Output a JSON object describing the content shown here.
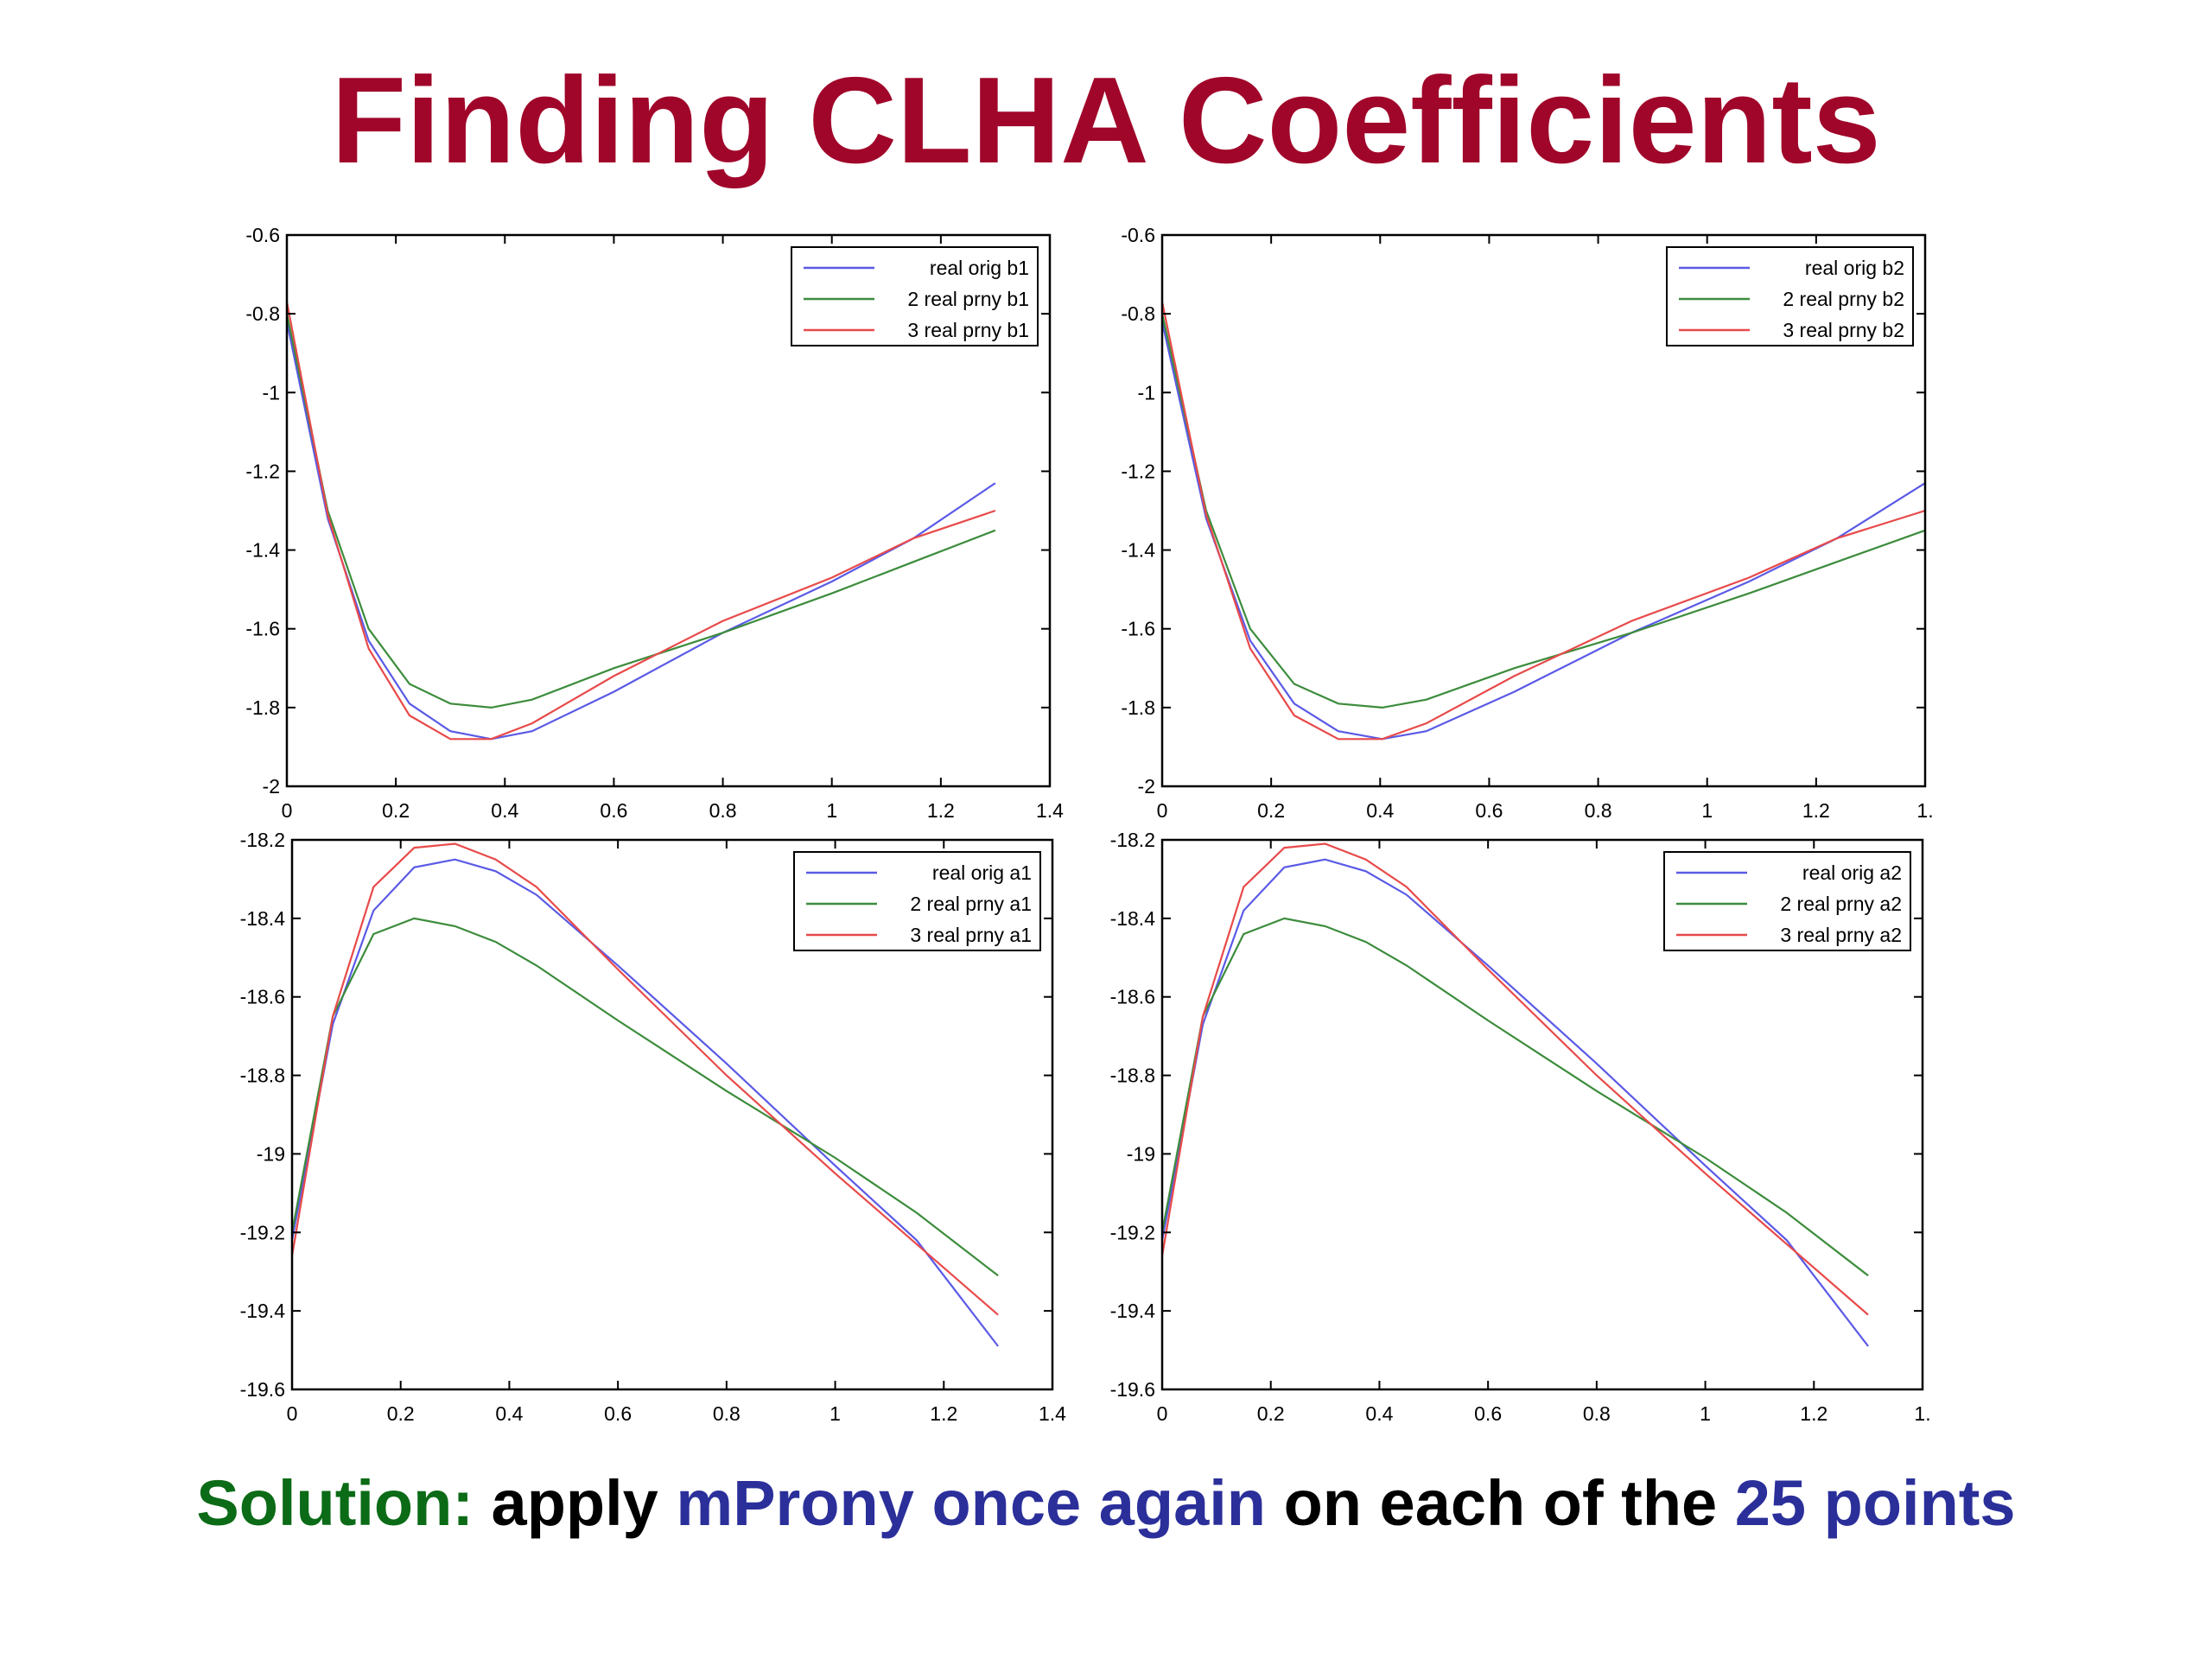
{
  "title": "Finding CLHA Coefficients",
  "caption": {
    "solution": "Solution:",
    "apply": "apply",
    "method": "mProny once again",
    "on_each": "on each of the",
    "points": "25 points"
  },
  "colors": {
    "title": "#a0062a",
    "solution": "#0b6b16",
    "highlight": "#2b2f9a",
    "text": "#000000",
    "series_blue": "#5a5ae6",
    "series_green": "#3c8c3c",
    "series_red": "#e84a4a"
  },
  "chart_data": [
    {
      "type": "line",
      "xlim": [
        0,
        1.4
      ],
      "ylim": [
        -2,
        -0.6
      ],
      "xticks": [
        "0",
        "0.2",
        "0.4",
        "0.6",
        "0.8",
        "1",
        "1.2",
        "1.4"
      ],
      "yticks": [
        "-2",
        "-1.8",
        "-1.6",
        "-1.4",
        "-1.2",
        "-1",
        "-0.8",
        "-0.6"
      ],
      "legend_position": "top-right",
      "x": [
        0.0,
        0.075,
        0.15,
        0.225,
        0.3,
        0.375,
        0.45,
        0.6,
        0.8,
        1.0,
        1.15,
        1.3
      ],
      "series": [
        {
          "name": "real orig b1",
          "values": [
            -0.82,
            -1.32,
            -1.63,
            -1.79,
            -1.86,
            -1.88,
            -1.86,
            -1.76,
            -1.61,
            -1.48,
            -1.37,
            -1.23
          ]
        },
        {
          "name": "2 real prny b1",
          "values": [
            -0.8,
            -1.3,
            -1.6,
            -1.74,
            -1.79,
            -1.8,
            -1.78,
            -1.7,
            -1.61,
            -1.51,
            -1.43,
            -1.35
          ]
        },
        {
          "name": "3 real prny b1",
          "values": [
            -0.77,
            -1.31,
            -1.65,
            -1.82,
            -1.88,
            -1.88,
            -1.84,
            -1.72,
            -1.58,
            -1.47,
            -1.37,
            -1.3
          ]
        }
      ]
    },
    {
      "type": "line",
      "xlim": [
        0,
        1.3
      ],
      "ylim": [
        -2,
        -0.6
      ],
      "xticks": [
        "0",
        "0.2",
        "0.4",
        "0.6",
        "0.8",
        "1",
        "1.2",
        "1."
      ],
      "yticks": [
        "-2",
        "-1.8",
        "-1.6",
        "-1.4",
        "-1.2",
        "-1",
        "-0.8",
        "-0.6"
      ],
      "legend_position": "top-right",
      "x": [
        0.0,
        0.075,
        0.15,
        0.225,
        0.3,
        0.375,
        0.45,
        0.6,
        0.8,
        1.0,
        1.15,
        1.3
      ],
      "series": [
        {
          "name": "real orig b2",
          "values": [
            -0.82,
            -1.32,
            -1.63,
            -1.79,
            -1.86,
            -1.88,
            -1.86,
            -1.76,
            -1.61,
            -1.48,
            -1.37,
            -1.23
          ]
        },
        {
          "name": "2 real prny b2",
          "values": [
            -0.8,
            -1.3,
            -1.6,
            -1.74,
            -1.79,
            -1.8,
            -1.78,
            -1.7,
            -1.61,
            -1.51,
            -1.43,
            -1.35
          ]
        },
        {
          "name": "3 real prny b2",
          "values": [
            -0.77,
            -1.31,
            -1.65,
            -1.82,
            -1.88,
            -1.88,
            -1.84,
            -1.72,
            -1.58,
            -1.47,
            -1.37,
            -1.3
          ]
        }
      ]
    },
    {
      "type": "line",
      "xlim": [
        0,
        1.4
      ],
      "ylim": [
        -19.6,
        -18.2
      ],
      "xticks": [
        "0",
        "0.2",
        "0.4",
        "0.6",
        "0.8",
        "1",
        "1.2",
        "1.4"
      ],
      "yticks": [
        "-19.6",
        "-19.4",
        "-19.2",
        "-19",
        "-18.8",
        "-18.6",
        "-18.4",
        "-18.2"
      ],
      "legend_position": "top-right",
      "x": [
        0.0,
        0.075,
        0.15,
        0.225,
        0.3,
        0.375,
        0.45,
        0.6,
        0.8,
        1.0,
        1.15,
        1.3
      ],
      "series": [
        {
          "name": "real orig a1",
          "values": [
            -19.22,
            -18.67,
            -18.38,
            -18.27,
            -18.25,
            -18.28,
            -18.34,
            -18.52,
            -18.77,
            -19.03,
            -19.22,
            -19.49
          ]
        },
        {
          "name": "2 real prny a1",
          "values": [
            -19.2,
            -18.65,
            -18.44,
            -18.4,
            -18.42,
            -18.46,
            -18.52,
            -18.66,
            -18.84,
            -19.01,
            -19.15,
            -19.31
          ]
        },
        {
          "name": "3 real prny a1",
          "values": [
            -19.26,
            -18.65,
            -18.32,
            -18.22,
            -18.21,
            -18.25,
            -18.32,
            -18.53,
            -18.8,
            -19.05,
            -19.23,
            -19.41
          ]
        }
      ]
    },
    {
      "type": "line",
      "xlim": [
        0,
        1.4
      ],
      "ylim": [
        -19.6,
        -18.2
      ],
      "xticks": [
        "0",
        "0.2",
        "0.4",
        "0.6",
        "0.8",
        "1",
        "1.2",
        "1."
      ],
      "yticks": [
        "-19.6",
        "-19.4",
        "-19.2",
        "-19",
        "-18.8",
        "-18.6",
        "-18.4",
        "-18.2"
      ],
      "legend_position": "top-right",
      "x": [
        0.0,
        0.075,
        0.15,
        0.225,
        0.3,
        0.375,
        0.45,
        0.6,
        0.8,
        1.0,
        1.15,
        1.3
      ],
      "series": [
        {
          "name": "real orig a2",
          "values": [
            -19.22,
            -18.67,
            -18.38,
            -18.27,
            -18.25,
            -18.28,
            -18.34,
            -18.52,
            -18.77,
            -19.03,
            -19.22,
            -19.49
          ]
        },
        {
          "name": "2 real prny a2",
          "values": [
            -19.2,
            -18.65,
            -18.44,
            -18.4,
            -18.42,
            -18.46,
            -18.52,
            -18.66,
            -18.84,
            -19.01,
            -19.15,
            -19.31
          ]
        },
        {
          "name": "3 real prny a2",
          "values": [
            -19.26,
            -18.65,
            -18.32,
            -18.22,
            -18.21,
            -18.25,
            -18.32,
            -18.53,
            -18.8,
            -19.05,
            -19.23,
            -19.41
          ]
        }
      ]
    }
  ]
}
